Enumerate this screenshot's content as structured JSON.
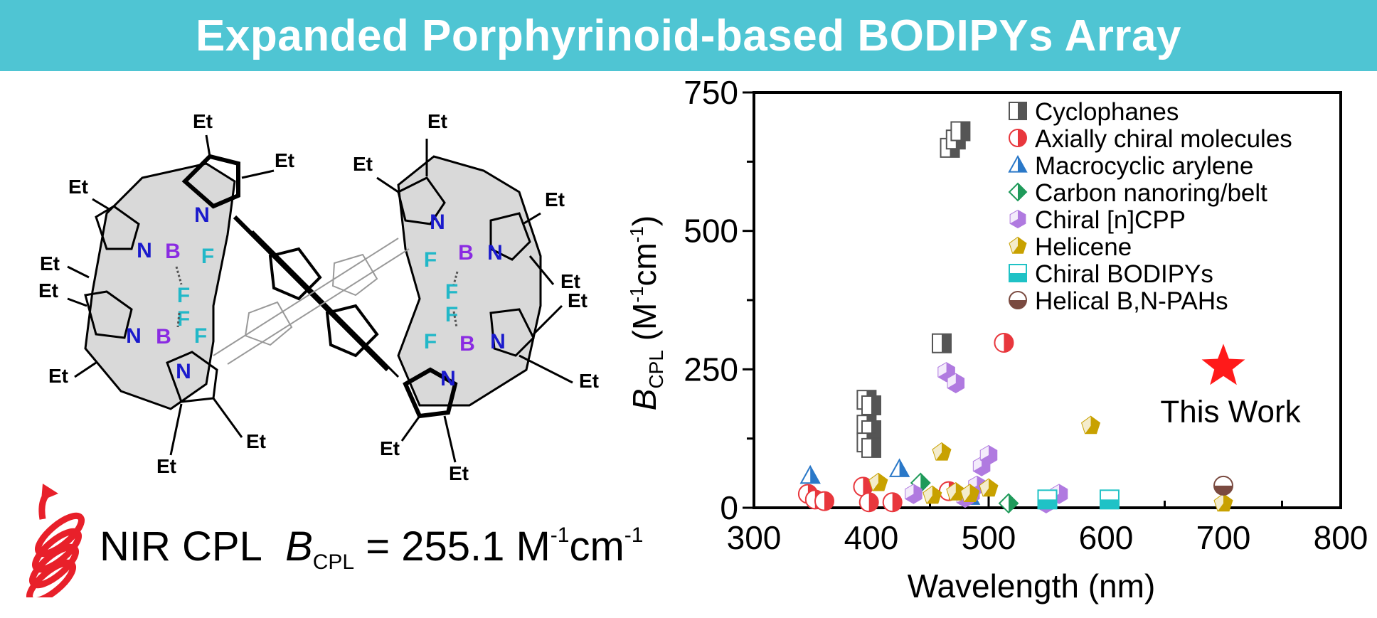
{
  "banner": {
    "title": "Expanded Porphyrinoid-based BODIPYs Array",
    "color": "#4fc5d3"
  },
  "molecule": {
    "ethyl_label": "Et",
    "nitrogen_label": "N",
    "boron_label": "B",
    "fluorine_label": "F",
    "colors": {
      "nitrogen": "#1a1acc",
      "boron": "#8a2be2",
      "fluorine": "#22b8c8",
      "ring_fill": "#d9d9d9"
    }
  },
  "cpl_line": {
    "prefix": "NIR CPL",
    "symbol": "B",
    "symbol_sub": "CPL",
    "equals_value": " = 255.1 M",
    "unit_exp1": "-1",
    "unit_mid": "cm",
    "unit_exp2": "-1"
  },
  "chart_data": {
    "type": "scatter",
    "xlabel": "Wavelength (nm)",
    "ylabel_symbol": "B",
    "ylabel_sub": "CPL",
    "ylabel_unit_open": " (M",
    "ylabel_unit_exp1": "-1",
    "ylabel_unit_mid": "cm",
    "ylabel_unit_exp2": "-1",
    "ylabel_unit_close": ")",
    "xlim": [
      300,
      800
    ],
    "ylim": [
      0,
      750
    ],
    "xticks": [
      300,
      400,
      500,
      600,
      700,
      800
    ],
    "yticks": [
      0,
      250,
      500,
      750
    ],
    "legend_position": "top-right",
    "series": [
      {
        "name": "Cyclophanes",
        "marker": "square-half",
        "color": "#555555",
        "points": [
          [
            467,
            650
          ],
          [
            472,
            665
          ],
          [
            476,
            680
          ],
          [
            460,
            297
          ],
          [
            396,
            195
          ],
          [
            400,
            185
          ],
          [
            396,
            150
          ],
          [
            400,
            140
          ],
          [
            396,
            118
          ],
          [
            400,
            108
          ]
        ]
      },
      {
        "name": "Axially chiral molecules",
        "marker": "circle-half",
        "color": "#e8373d",
        "points": [
          [
            346,
            25
          ],
          [
            352,
            15
          ],
          [
            360,
            12
          ],
          [
            393,
            38
          ],
          [
            398,
            10
          ],
          [
            418,
            10
          ],
          [
            466,
            30
          ],
          [
            513,
            298
          ]
        ]
      },
      {
        "name": "Macrocyclic arylene",
        "marker": "triangle-half",
        "color": "#2a78c8",
        "points": [
          [
            348,
            58
          ],
          [
            424,
            70
          ],
          [
            484,
            20
          ]
        ]
      },
      {
        "name": "Carbon nanoring/belt",
        "marker": "diamond-half",
        "color": "#1f9a5a",
        "points": [
          [
            442,
            45
          ],
          [
            517,
            8
          ]
        ]
      },
      {
        "name": "Chiral [n]CPP",
        "marker": "hexagon-half",
        "color": "#b07ae0",
        "points": [
          [
            464,
            245
          ],
          [
            472,
            225
          ],
          [
            436,
            25
          ],
          [
            480,
            18
          ],
          [
            485,
            25
          ],
          [
            490,
            40
          ],
          [
            494,
            75
          ],
          [
            500,
            95
          ],
          [
            560,
            25
          ],
          [
            549,
            8
          ]
        ]
      },
      {
        "name": "Helicene",
        "marker": "pentagon-half",
        "color": "#c8a100",
        "points": [
          [
            406,
            45
          ],
          [
            452,
            22
          ],
          [
            460,
            100
          ],
          [
            472,
            28
          ],
          [
            484,
            25
          ],
          [
            500,
            35
          ],
          [
            587,
            148
          ],
          [
            700,
            8
          ]
        ]
      },
      {
        "name": "Chiral BODIPYs",
        "marker": "square-bottom",
        "color": "#1fc2c6",
        "points": [
          [
            550,
            15
          ],
          [
            603,
            15
          ]
        ]
      },
      {
        "name": "Helical B,N-PAHs",
        "marker": "circle-bottom",
        "color": "#7a4a40",
        "points": [
          [
            700,
            40
          ]
        ]
      }
    ],
    "highlight": {
      "label": "This Work",
      "x": 700,
      "y": 255.1,
      "marker": "star",
      "color": "#ff1a1a"
    }
  }
}
